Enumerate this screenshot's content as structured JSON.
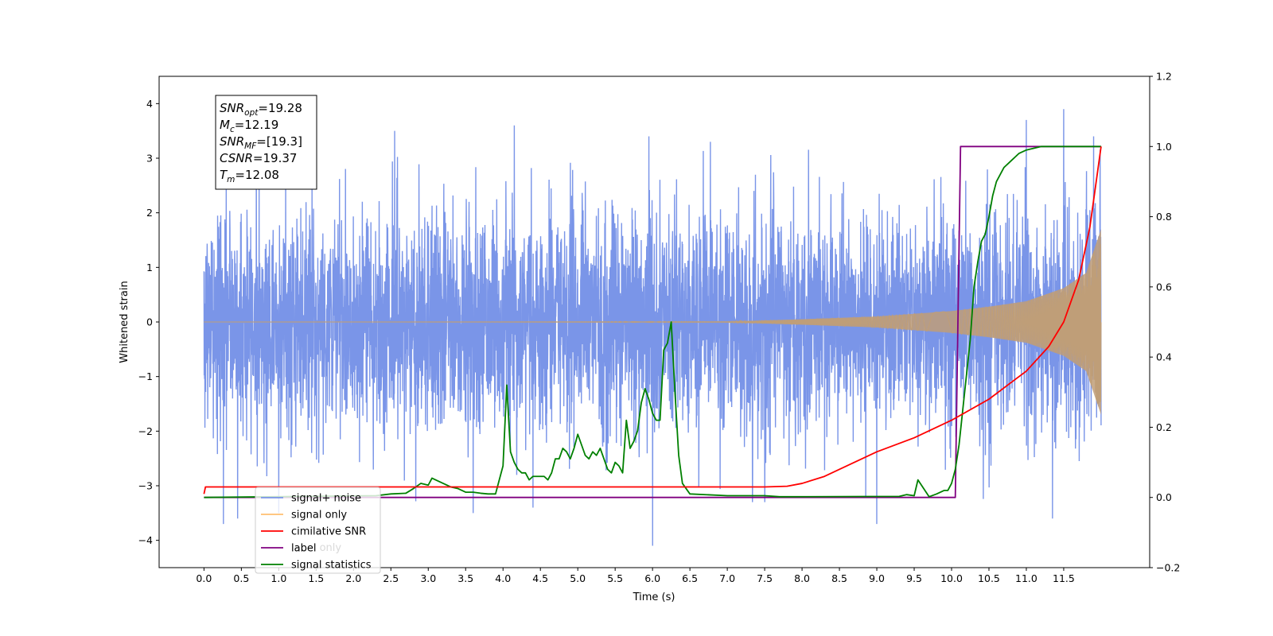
{
  "chart_data": {
    "type": "line",
    "xlabel": "Time (s)",
    "ylabel": "Whitened strain",
    "xlim": [
      -0.6,
      12.65
    ],
    "ylim": [
      -4.5,
      4.5
    ],
    "y2lim": [
      -0.2,
      1.2
    ],
    "x_ticks": [
      "0.0",
      "0.5",
      "1.0",
      "1.5",
      "2.0",
      "2.5",
      "3.0",
      "3.5",
      "4.0",
      "4.5",
      "5.0",
      "5.5",
      "6.0",
      "6.5",
      "7.0",
      "7.5",
      "8.0",
      "8.5",
      "9.0",
      "9.5",
      "10.0",
      "10.5",
      "11.0",
      "11.5"
    ],
    "y_ticks": [
      "−4",
      "−3",
      "−2",
      "−1",
      "0",
      "1",
      "2",
      "3",
      "4"
    ],
    "y2_ticks": [
      "−0.2",
      "0.0",
      "0.2",
      "0.4",
      "0.6",
      "0.8",
      "1.0",
      "1.2"
    ],
    "grid": false,
    "legend_position": "lower-left",
    "annotation": [
      {
        "base": "SNR",
        "sub": "opt",
        "value": "=19.28"
      },
      {
        "base": "M",
        "sub": "c",
        "value": "=12.19"
      },
      {
        "base": "SNR",
        "sub": "MF",
        "value": "=[19.3]"
      },
      {
        "base": "CSNR",
        "sub": "",
        "value": "=19.37"
      },
      {
        "base": "T",
        "sub": "m",
        "value": "=12.08"
      }
    ],
    "legend": [
      "signal+ noise",
      "signal only",
      "cimilative SNR",
      "label",
      "signal statistics"
    ],
    "hidden_legend_text": "label only",
    "colors": {
      "signal_noise": "#7a95e8",
      "signal_only": "#ffbf70",
      "cumulative_snr": "#ff0000",
      "label": "#800080",
      "signal_statistics": "#008000",
      "overlap": "#bf9e78"
    },
    "series": [
      {
        "name": "signal+ noise",
        "axis": "left",
        "description_values": "white noise, std about 1.0, range about -4.1 to 3.9, x from 0.0 to 12.0",
        "x_range": [
          0.0,
          12.0
        ],
        "extremes": [
          [
            0.26,
            -3.7
          ],
          [
            0.45,
            -3.6
          ],
          [
            1.0,
            -3.5
          ],
          [
            2.55,
            3.5
          ],
          [
            3.6,
            -3.5
          ],
          [
            4.15,
            3.6
          ],
          [
            4.4,
            -3.4
          ],
          [
            5.95,
            3.4
          ],
          [
            6.0,
            -4.1
          ],
          [
            9.0,
            -3.7
          ],
          [
            11.0,
            3.7
          ],
          [
            11.35,
            -3.6
          ],
          [
            11.5,
            3.9
          ],
          [
            11.9,
            3.4
          ]
        ]
      },
      {
        "name": "signal only",
        "axis": "left",
        "chirp_envelope": {
          "x": [
            0.0,
            7.0,
            8.0,
            9.0,
            10.0,
            10.5,
            11.0,
            11.5,
            11.8,
            12.0
          ],
          "amplitude": [
            0.0,
            0.005,
            0.05,
            0.1,
            0.2,
            0.28,
            0.38,
            0.62,
            0.9,
            1.7
          ]
        }
      },
      {
        "name": "cimilative SNR",
        "axis": "right",
        "x": [
          0.0,
          0.02,
          7.5,
          7.8,
          8.0,
          8.3,
          8.6,
          9.0,
          9.5,
          10.0,
          10.5,
          11.0,
          11.3,
          11.5,
          11.7,
          11.85,
          12.0
        ],
        "y": [
          0.01,
          0.03,
          0.03,
          0.032,
          0.04,
          0.06,
          0.09,
          0.13,
          0.17,
          0.22,
          0.28,
          0.36,
          0.43,
          0.5,
          0.62,
          0.77,
          1.0
        ]
      },
      {
        "name": "label",
        "axis": "right",
        "x": [
          0.0,
          10.05,
          10.12,
          12.0
        ],
        "y": [
          0.0,
          0.0,
          1.0,
          1.0
        ]
      },
      {
        "name": "signal statistics",
        "axis": "right",
        "x": [
          0.0,
          2.3,
          2.5,
          2.7,
          2.8,
          2.9,
          3.0,
          3.05,
          3.1,
          3.2,
          3.3,
          3.4,
          3.5,
          3.6,
          3.7,
          3.8,
          3.9,
          3.95,
          4.0,
          4.05,
          4.1,
          4.15,
          4.2,
          4.25,
          4.3,
          4.35,
          4.4,
          4.5,
          4.55,
          4.6,
          4.65,
          4.7,
          4.75,
          4.8,
          4.85,
          4.9,
          4.95,
          5.0,
          5.05,
          5.1,
          5.15,
          5.2,
          5.25,
          5.3,
          5.35,
          5.4,
          5.45,
          5.5,
          5.55,
          5.6,
          5.65,
          5.7,
          5.75,
          5.8,
          5.85,
          5.9,
          5.95,
          6.0,
          6.05,
          6.1,
          6.15,
          6.2,
          6.25,
          6.3,
          6.35,
          6.4,
          6.5,
          7.0,
          7.5,
          7.7,
          9.3,
          9.4,
          9.5,
          9.55,
          9.7,
          9.8,
          9.9,
          9.95,
          10.0,
          10.05,
          10.1,
          10.15,
          10.2,
          10.25,
          10.3,
          10.35,
          10.4,
          10.45,
          10.5,
          10.55,
          10.6,
          10.7,
          10.8,
          10.9,
          11.0,
          11.1,
          11.2,
          12.0
        ],
        "y": [
          0.0,
          0.005,
          0.01,
          0.012,
          0.025,
          0.04,
          0.035,
          0.055,
          0.05,
          0.04,
          0.03,
          0.025,
          0.015,
          0.015,
          0.012,
          0.01,
          0.01,
          0.05,
          0.09,
          0.32,
          0.13,
          0.1,
          0.08,
          0.07,
          0.07,
          0.05,
          0.06,
          0.06,
          0.06,
          0.05,
          0.07,
          0.11,
          0.11,
          0.14,
          0.13,
          0.11,
          0.14,
          0.18,
          0.15,
          0.12,
          0.11,
          0.13,
          0.12,
          0.14,
          0.11,
          0.08,
          0.07,
          0.1,
          0.09,
          0.07,
          0.22,
          0.14,
          0.16,
          0.19,
          0.27,
          0.31,
          0.28,
          0.24,
          0.22,
          0.22,
          0.42,
          0.44,
          0.5,
          0.3,
          0.12,
          0.04,
          0.01,
          0.005,
          0.005,
          0.002,
          0.003,
          0.008,
          0.005,
          0.05,
          0.002,
          0.01,
          0.02,
          0.02,
          0.04,
          0.08,
          0.15,
          0.25,
          0.35,
          0.45,
          0.6,
          0.67,
          0.73,
          0.75,
          0.8,
          0.86,
          0.9,
          0.94,
          0.96,
          0.98,
          0.99,
          0.995,
          1.0,
          1.0
        ]
      }
    ]
  }
}
